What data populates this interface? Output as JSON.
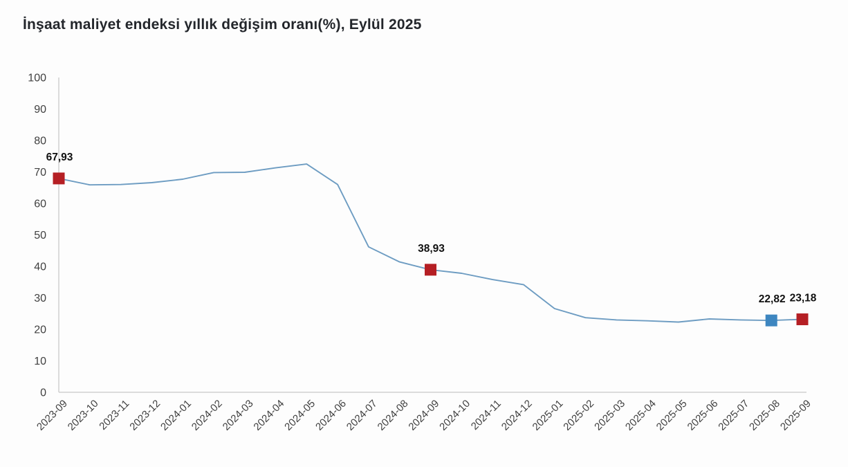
{
  "header": {
    "title": "İnşaat maliyet endeksi yıllık değişim oranı(%), Eylül 2025"
  },
  "colors": {
    "background": "#fdfdfd",
    "title_text": "#23262b",
    "axis_line": "#c9c9c9",
    "tick_text": "#404040",
    "line": "#6d9cc2",
    "marker_red": "#b51f24",
    "marker_blue": "#3d86c0",
    "label_text": "#111111"
  },
  "chart_data": {
    "type": "line",
    "title": "İnşaat maliyet endeksi yıllık değişim oranı(%), Eylül 2025",
    "xlabel": "",
    "ylabel": "",
    "ylim": [
      0,
      100
    ],
    "y_ticks": [
      0,
      10,
      20,
      30,
      40,
      50,
      60,
      70,
      80,
      90,
      100
    ],
    "grid": false,
    "legend_position": "none",
    "categories": [
      "2023-09",
      "2023-10",
      "2023-11",
      "2023-12",
      "2024-01",
      "2024-02",
      "2024-03",
      "2024-04",
      "2024-05",
      "2024-06",
      "2024-07",
      "2024-08",
      "2024-09",
      "2024-10",
      "2024-11",
      "2024-12",
      "2025-01",
      "2025-02",
      "2025-03",
      "2025-04",
      "2025-05",
      "2025-06",
      "2025-07",
      "2025-08",
      "2025-09"
    ],
    "series": [
      {
        "name": "İnşaat maliyet endeksi yıllık değişim oranı (%)",
        "values": [
          67.93,
          65.9,
          66.0,
          66.6,
          67.7,
          69.8,
          69.9,
          71.3,
          72.5,
          66.0,
          46.2,
          41.4,
          38.93,
          37.8,
          35.8,
          34.2,
          26.6,
          23.7,
          23.0,
          22.7,
          22.3,
          23.3,
          23.0,
          22.82,
          23.18
        ]
      }
    ],
    "annotations": [
      {
        "category": "2023-09",
        "index": 0,
        "value": 67.93,
        "label": "67,93",
        "marker": "square",
        "marker_color": "red"
      },
      {
        "category": "2024-09",
        "index": 12,
        "value": 38.93,
        "label": "38,93",
        "marker": "square",
        "marker_color": "red"
      },
      {
        "category": "2025-08",
        "index": 23,
        "value": 22.82,
        "label": "22,82",
        "marker": "square",
        "marker_color": "blue"
      },
      {
        "category": "2025-09",
        "index": 24,
        "value": 23.18,
        "label": "23,18",
        "marker": "square",
        "marker_color": "red"
      }
    ]
  }
}
